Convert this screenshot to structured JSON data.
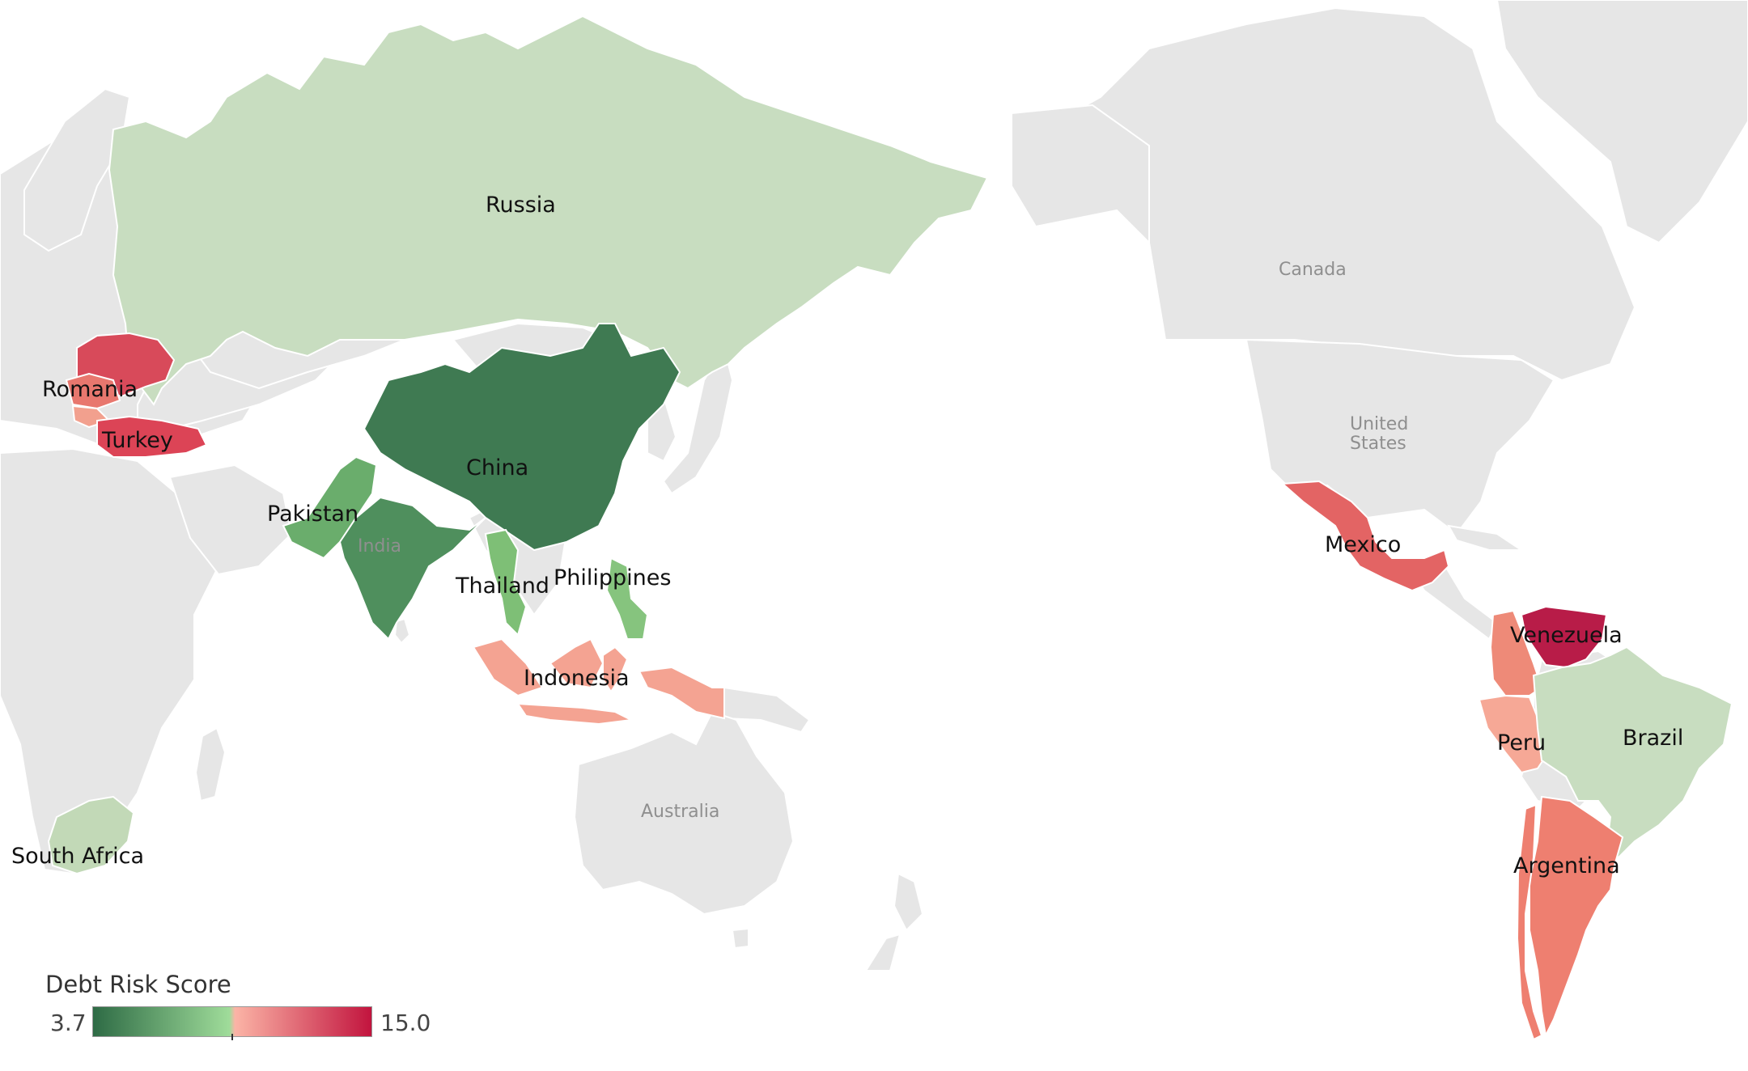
{
  "legend": {
    "title": "Debt Risk Score",
    "min": "3.7",
    "max": "15.0",
    "min_value": 3.7,
    "max_value": 15.0,
    "midpoint_value": 9.35,
    "colors": [
      "#2e6b45",
      "#9fdc9a",
      "#fbb4a6",
      "#c2143e"
    ]
  },
  "base_labels": {
    "canada": "Canada",
    "united_states": "United States",
    "india": "India",
    "australia": "Australia"
  },
  "countries": [
    {
      "name": "Russia",
      "color": "#c8ddc0"
    },
    {
      "name": "China",
      "color": "#3f7a52"
    },
    {
      "name": "Pakistan",
      "color": "#6aad6c"
    },
    {
      "name": "India",
      "color": "#4f8f5d"
    },
    {
      "name": "Thailand",
      "color": "#7ebf76"
    },
    {
      "name": "Philippines",
      "color": "#86c47e"
    },
    {
      "name": "Indonesia",
      "color": "#f4a392"
    },
    {
      "name": "Romania",
      "color": "#e8776e"
    },
    {
      "name": "Turkey",
      "color": "#dc4456"
    },
    {
      "name": "South Africa",
      "color": "#c2d9b7"
    },
    {
      "name": "Mexico",
      "color": "#e36464"
    },
    {
      "name": "Venezuela",
      "color": "#b81c48"
    },
    {
      "name": "Brazil",
      "color": "#c8ddc0"
    },
    {
      "name": "Peru",
      "color": "#f6a896"
    },
    {
      "name": "Argentina",
      "color": "#ee7f70"
    }
  ],
  "extra_regions": {
    "ukraine_color": "#d84a5a",
    "colombia_color": "#ee8a78",
    "bulgaria_color": "#f2a08e",
    "chile_color": "#ee7f70"
  }
}
